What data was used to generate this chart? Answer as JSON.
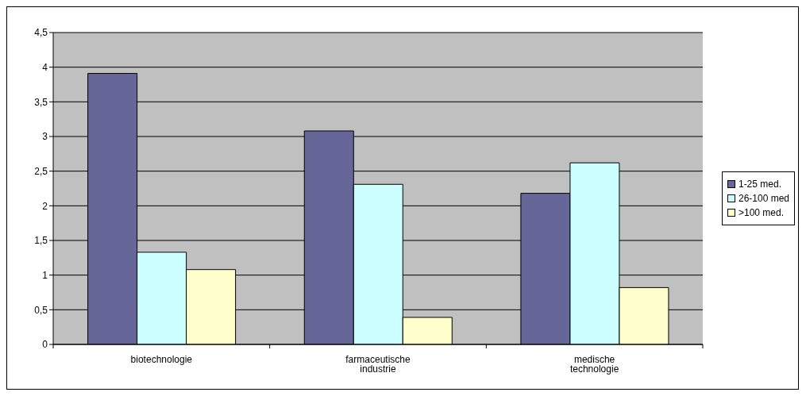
{
  "chart_data": {
    "type": "bar",
    "categories": [
      "biotechnologie",
      "farmaceutische industrie",
      "medische technologie"
    ],
    "series": [
      {
        "name": "1-25 med.",
        "color": "#666699",
        "values": [
          3.91,
          3.08,
          2.18
        ]
      },
      {
        "name": "26-100 med",
        "color": "#ccffff",
        "values": [
          1.33,
          2.31,
          2.62
        ]
      },
      {
        "name": ">100 med.",
        "color": "#ffffcc",
        "values": [
          1.08,
          0.39,
          0.82
        ]
      }
    ],
    "ylim": [
      0,
      4.5
    ],
    "yticks": [
      0,
      {
        "value": 0.5,
        "label": "0,5"
      },
      1,
      {
        "value": 1.5,
        "label": "1,5"
      },
      2,
      {
        "value": 2.5,
        "label": "2,5"
      },
      3,
      {
        "value": 3.5,
        "label": "3,5"
      },
      4,
      {
        "value": 4.5,
        "label": "4,5"
      }
    ],
    "grid": "y",
    "legend": "right"
  }
}
